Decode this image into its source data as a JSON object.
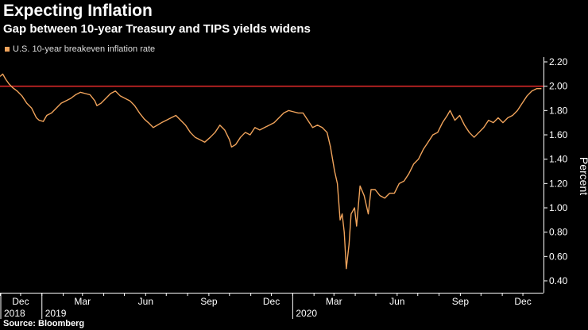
{
  "header": {
    "title": "Expecting Inflation",
    "subtitle": "Gap between 10-year Treasury and TIPS yields widens"
  },
  "legend": {
    "label": "U.S. 10-year breakeven inflation rate"
  },
  "source": "Source: Bloomberg",
  "colors": {
    "series": "#f0a35b",
    "reference": "#d62828",
    "axis": "#ffffff",
    "background": "#000000"
  },
  "chart_data": {
    "type": "line",
    "title": "Expecting Inflation",
    "subtitle": "Gap between 10-year Treasury and TIPS yields widens",
    "ylabel": "Percent",
    "xlabel": "",
    "ylim": [
      0.4,
      2.2
    ],
    "yticks": [
      "2.20",
      "2.00",
      "1.80",
      "1.60",
      "1.40",
      "1.20",
      "1.00",
      "0.80",
      "0.60",
      "0.40"
    ],
    "xlim": [
      "2018-11-01",
      "2020-12-31"
    ],
    "month_ticks": [
      {
        "label": "Dec",
        "date": "2018-12-01"
      },
      {
        "label": "Mar",
        "date": "2019-03-01"
      },
      {
        "label": "Jun",
        "date": "2019-06-01"
      },
      {
        "label": "Sep",
        "date": "2019-09-01"
      },
      {
        "label": "Dec",
        "date": "2019-12-01"
      },
      {
        "label": "Mar",
        "date": "2020-03-01"
      },
      {
        "label": "Jun",
        "date": "2020-06-01"
      },
      {
        "label": "Sep",
        "date": "2020-09-01"
      },
      {
        "label": "Dec",
        "date": "2020-12-01"
      }
    ],
    "year_labels": [
      {
        "label": "2018",
        "date": "2018-11-01"
      },
      {
        "label": "2019",
        "date": "2019-01-01"
      },
      {
        "label": "2020",
        "date": "2020-01-01"
      }
    ],
    "reference_line": {
      "y": 2.0
    },
    "series": [
      {
        "name": "U.S. 10-year breakeven inflation rate",
        "points": [
          [
            "2018-11-01",
            2.08
          ],
          [
            "2018-11-05",
            2.1
          ],
          [
            "2018-11-09",
            2.06
          ],
          [
            "2018-11-14",
            2.02
          ],
          [
            "2018-11-19",
            1.99
          ],
          [
            "2018-11-26",
            1.96
          ],
          [
            "2018-12-03",
            1.92
          ],
          [
            "2018-12-10",
            1.86
          ],
          [
            "2018-12-17",
            1.82
          ],
          [
            "2018-12-24",
            1.74
          ],
          [
            "2018-12-28",
            1.72
          ],
          [
            "2019-01-03",
            1.71
          ],
          [
            "2019-01-08",
            1.76
          ],
          [
            "2019-01-15",
            1.78
          ],
          [
            "2019-01-22",
            1.82
          ],
          [
            "2019-01-29",
            1.86
          ],
          [
            "2019-02-05",
            1.88
          ],
          [
            "2019-02-12",
            1.9
          ],
          [
            "2019-02-19",
            1.93
          ],
          [
            "2019-02-26",
            1.95
          ],
          [
            "2019-03-05",
            1.94
          ],
          [
            "2019-03-12",
            1.93
          ],
          [
            "2019-03-19",
            1.88
          ],
          [
            "2019-03-22",
            1.84
          ],
          [
            "2019-03-28",
            1.86
          ],
          [
            "2019-04-04",
            1.9
          ],
          [
            "2019-04-11",
            1.94
          ],
          [
            "2019-04-18",
            1.96
          ],
          [
            "2019-04-25",
            1.92
          ],
          [
            "2019-05-02",
            1.9
          ],
          [
            "2019-05-09",
            1.88
          ],
          [
            "2019-05-16",
            1.84
          ],
          [
            "2019-05-23",
            1.78
          ],
          [
            "2019-05-30",
            1.73
          ],
          [
            "2019-06-05",
            1.7
          ],
          [
            "2019-06-12",
            1.66
          ],
          [
            "2019-06-18",
            1.68
          ],
          [
            "2019-06-24",
            1.7
          ],
          [
            "2019-07-01",
            1.72
          ],
          [
            "2019-07-08",
            1.74
          ],
          [
            "2019-07-15",
            1.76
          ],
          [
            "2019-07-22",
            1.72
          ],
          [
            "2019-07-29",
            1.68
          ],
          [
            "2019-08-05",
            1.62
          ],
          [
            "2019-08-12",
            1.58
          ],
          [
            "2019-08-19",
            1.56
          ],
          [
            "2019-08-26",
            1.54
          ],
          [
            "2019-09-03",
            1.58
          ],
          [
            "2019-09-10",
            1.62
          ],
          [
            "2019-09-17",
            1.68
          ],
          [
            "2019-09-24",
            1.64
          ],
          [
            "2019-10-01",
            1.56
          ],
          [
            "2019-10-04",
            1.5
          ],
          [
            "2019-10-10",
            1.52
          ],
          [
            "2019-10-17",
            1.58
          ],
          [
            "2019-10-24",
            1.62
          ],
          [
            "2019-10-31",
            1.6
          ],
          [
            "2019-11-07",
            1.66
          ],
          [
            "2019-11-14",
            1.64
          ],
          [
            "2019-11-21",
            1.66
          ],
          [
            "2019-11-28",
            1.68
          ],
          [
            "2019-12-05",
            1.7
          ],
          [
            "2019-12-12",
            1.74
          ],
          [
            "2019-12-19",
            1.78
          ],
          [
            "2019-12-26",
            1.8
          ],
          [
            "2020-01-02",
            1.79
          ],
          [
            "2020-01-09",
            1.78
          ],
          [
            "2020-01-16",
            1.78
          ],
          [
            "2020-01-23",
            1.72
          ],
          [
            "2020-01-30",
            1.66
          ],
          [
            "2020-02-06",
            1.68
          ],
          [
            "2020-02-13",
            1.66
          ],
          [
            "2020-02-20",
            1.62
          ],
          [
            "2020-02-25",
            1.5
          ],
          [
            "2020-03-02",
            1.3
          ],
          [
            "2020-03-06",
            1.2
          ],
          [
            "2020-03-10",
            0.9
          ],
          [
            "2020-03-13",
            0.95
          ],
          [
            "2020-03-16",
            0.8
          ],
          [
            "2020-03-19",
            0.5
          ],
          [
            "2020-03-23",
            0.7
          ],
          [
            "2020-03-26",
            0.95
          ],
          [
            "2020-03-31",
            1.0
          ],
          [
            "2020-04-03",
            0.85
          ],
          [
            "2020-04-08",
            1.18
          ],
          [
            "2020-04-14",
            1.1
          ],
          [
            "2020-04-20",
            0.95
          ],
          [
            "2020-04-24",
            1.15
          ],
          [
            "2020-04-30",
            1.15
          ],
          [
            "2020-05-07",
            1.1
          ],
          [
            "2020-05-14",
            1.08
          ],
          [
            "2020-05-21",
            1.12
          ],
          [
            "2020-05-28",
            1.12
          ],
          [
            "2020-06-04",
            1.2
          ],
          [
            "2020-06-11",
            1.22
          ],
          [
            "2020-06-18",
            1.28
          ],
          [
            "2020-06-25",
            1.36
          ],
          [
            "2020-07-02",
            1.4
          ],
          [
            "2020-07-09",
            1.48
          ],
          [
            "2020-07-16",
            1.54
          ],
          [
            "2020-07-23",
            1.6
          ],
          [
            "2020-07-30",
            1.62
          ],
          [
            "2020-08-06",
            1.7
          ],
          [
            "2020-08-13",
            1.76
          ],
          [
            "2020-08-17",
            1.8
          ],
          [
            "2020-08-24",
            1.72
          ],
          [
            "2020-08-31",
            1.76
          ],
          [
            "2020-09-07",
            1.68
          ],
          [
            "2020-09-14",
            1.62
          ],
          [
            "2020-09-21",
            1.58
          ],
          [
            "2020-09-28",
            1.62
          ],
          [
            "2020-10-05",
            1.66
          ],
          [
            "2020-10-12",
            1.72
          ],
          [
            "2020-10-19",
            1.7
          ],
          [
            "2020-10-26",
            1.74
          ],
          [
            "2020-11-02",
            1.7
          ],
          [
            "2020-11-09",
            1.74
          ],
          [
            "2020-11-16",
            1.76
          ],
          [
            "2020-11-23",
            1.8
          ],
          [
            "2020-11-30",
            1.86
          ],
          [
            "2020-12-07",
            1.92
          ],
          [
            "2020-12-14",
            1.96
          ],
          [
            "2020-12-21",
            1.98
          ],
          [
            "2020-12-28",
            1.98
          ]
        ]
      }
    ]
  }
}
